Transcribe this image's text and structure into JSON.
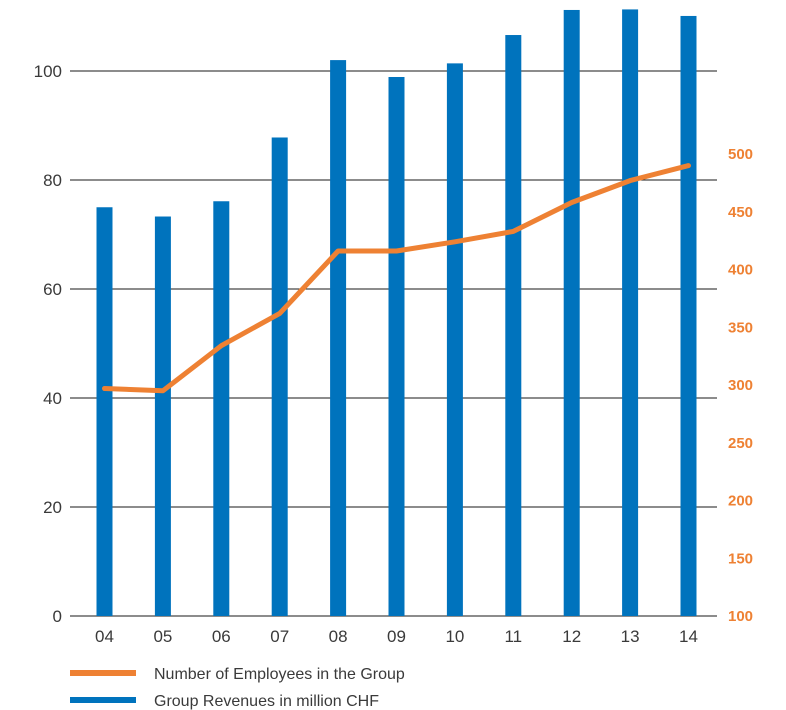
{
  "chart_data": {
    "type": "bar",
    "categories": [
      "04",
      "05",
      "06",
      "07",
      "08",
      "09",
      "10",
      "11",
      "12",
      "13",
      "14"
    ],
    "series": [
      {
        "name": "Group Revenues in million CHF",
        "type": "bar",
        "axis": "left",
        "color": "#0073bd",
        "values": [
          75,
          73.3,
          76.1,
          87.8,
          102,
          98.9,
          101.4,
          106.6,
          111.2,
          111.3,
          110.1
        ]
      },
      {
        "name": "Number of Employees in the Group",
        "type": "line",
        "axis": "right",
        "color": "#ee8133",
        "values": [
          297,
          295,
          334,
          362,
          416,
          416,
          424,
          433,
          458,
          477,
          490
        ]
      }
    ],
    "y_left": {
      "ticks": [
        "0",
        "20",
        "40",
        "60",
        "80",
        "100"
      ],
      "ylim": [
        0,
        112
      ]
    },
    "y_right": {
      "ticks": [
        "100",
        "150",
        "200",
        "250",
        "300",
        "350",
        "400",
        "450",
        "500"
      ],
      "ylim": [
        100,
        500
      ],
      "color": "#ee8133"
    },
    "grid": true,
    "legend": {
      "placement": "bottom-left",
      "items": [
        {
          "label": "Number of Employees in the Group",
          "color": "#ee8133"
        },
        {
          "label": "Group Revenues in million CHF",
          "color": "#0073bd"
        }
      ]
    }
  }
}
